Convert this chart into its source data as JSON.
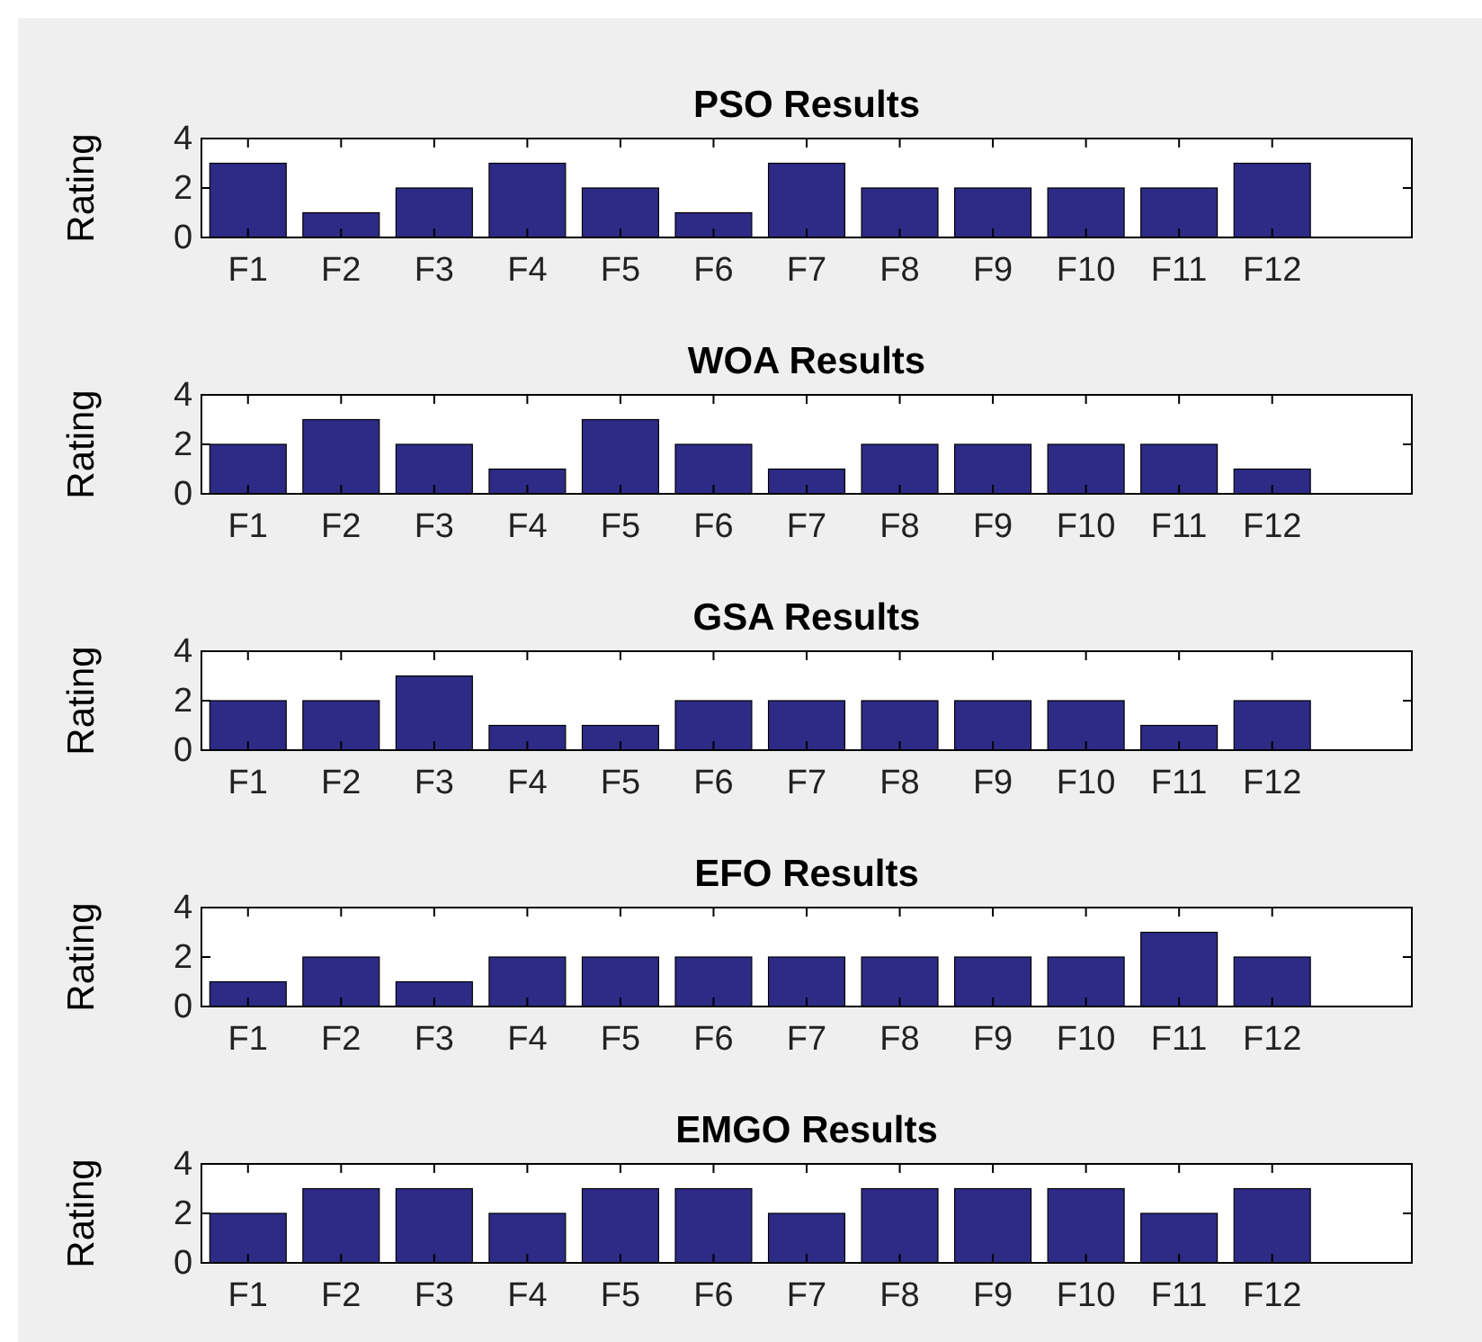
{
  "chart_data": [
    {
      "type": "bar",
      "title": "PSO Results",
      "ylabel": "Rating",
      "categories": [
        "F1",
        "F2",
        "F3",
        "F4",
        "F5",
        "F6",
        "F7",
        "F8",
        "F9",
        "F10",
        "F11",
        "F12",
        null
      ],
      "values": [
        3,
        1,
        2,
        3,
        2,
        1,
        3,
        2,
        2,
        2,
        2,
        3,
        null
      ],
      "color": "#2e2b87",
      "ylim": [
        0,
        4
      ],
      "yticks": [
        0,
        2,
        4
      ]
    },
    {
      "type": "bar",
      "title": "WOA Results",
      "ylabel": "Rating",
      "categories": [
        "F1",
        "F2",
        "F3",
        "F4",
        "F5",
        "F6",
        "F7",
        "F8",
        "F9",
        "F10",
        "F11",
        "F12",
        null
      ],
      "values": [
        2,
        3,
        2,
        1,
        3,
        2,
        1,
        2,
        2,
        2,
        2,
        1,
        null
      ],
      "color": "#2e2b87",
      "ylim": [
        0,
        4
      ],
      "yticks": [
        0,
        2,
        4
      ]
    },
    {
      "type": "bar",
      "title": "GSA Results",
      "ylabel": "Rating",
      "categories": [
        "F1",
        "F2",
        "F3",
        "F4",
        "F5",
        "F6",
        "F7",
        "F8",
        "F9",
        "F10",
        "F11",
        "F12",
        null
      ],
      "values": [
        2,
        2,
        3,
        1,
        1,
        2,
        2,
        2,
        2,
        2,
        1,
        2,
        null
      ],
      "color": "#2e2b87",
      "ylim": [
        0,
        4
      ],
      "yticks": [
        0,
        2,
        4
      ]
    },
    {
      "type": "bar",
      "title": "EFO Results",
      "ylabel": "Rating",
      "categories": [
        "F1",
        "F2",
        "F3",
        "F4",
        "F5",
        "F6",
        "F7",
        "F8",
        "F9",
        "F10",
        "F11",
        "F12",
        null
      ],
      "values": [
        1,
        2,
        1,
        2,
        2,
        2,
        2,
        2,
        2,
        2,
        3,
        2,
        null
      ],
      "color": "#2e2b87",
      "ylim": [
        0,
        4
      ],
      "yticks": [
        0,
        2,
        4
      ]
    },
    {
      "type": "bar",
      "title": "EMGO Results",
      "ylabel": "Rating",
      "categories": [
        "F1",
        "F2",
        "F3",
        "F4",
        "F5",
        "F6",
        "F7",
        "F8",
        "F9",
        "F10",
        "F11",
        "F12",
        null
      ],
      "values": [
        2,
        3,
        3,
        2,
        3,
        3,
        2,
        3,
        3,
        3,
        2,
        3,
        null
      ],
      "color": "#2e2b87",
      "ylim": [
        0,
        4
      ],
      "yticks": [
        0,
        2,
        4
      ]
    }
  ]
}
